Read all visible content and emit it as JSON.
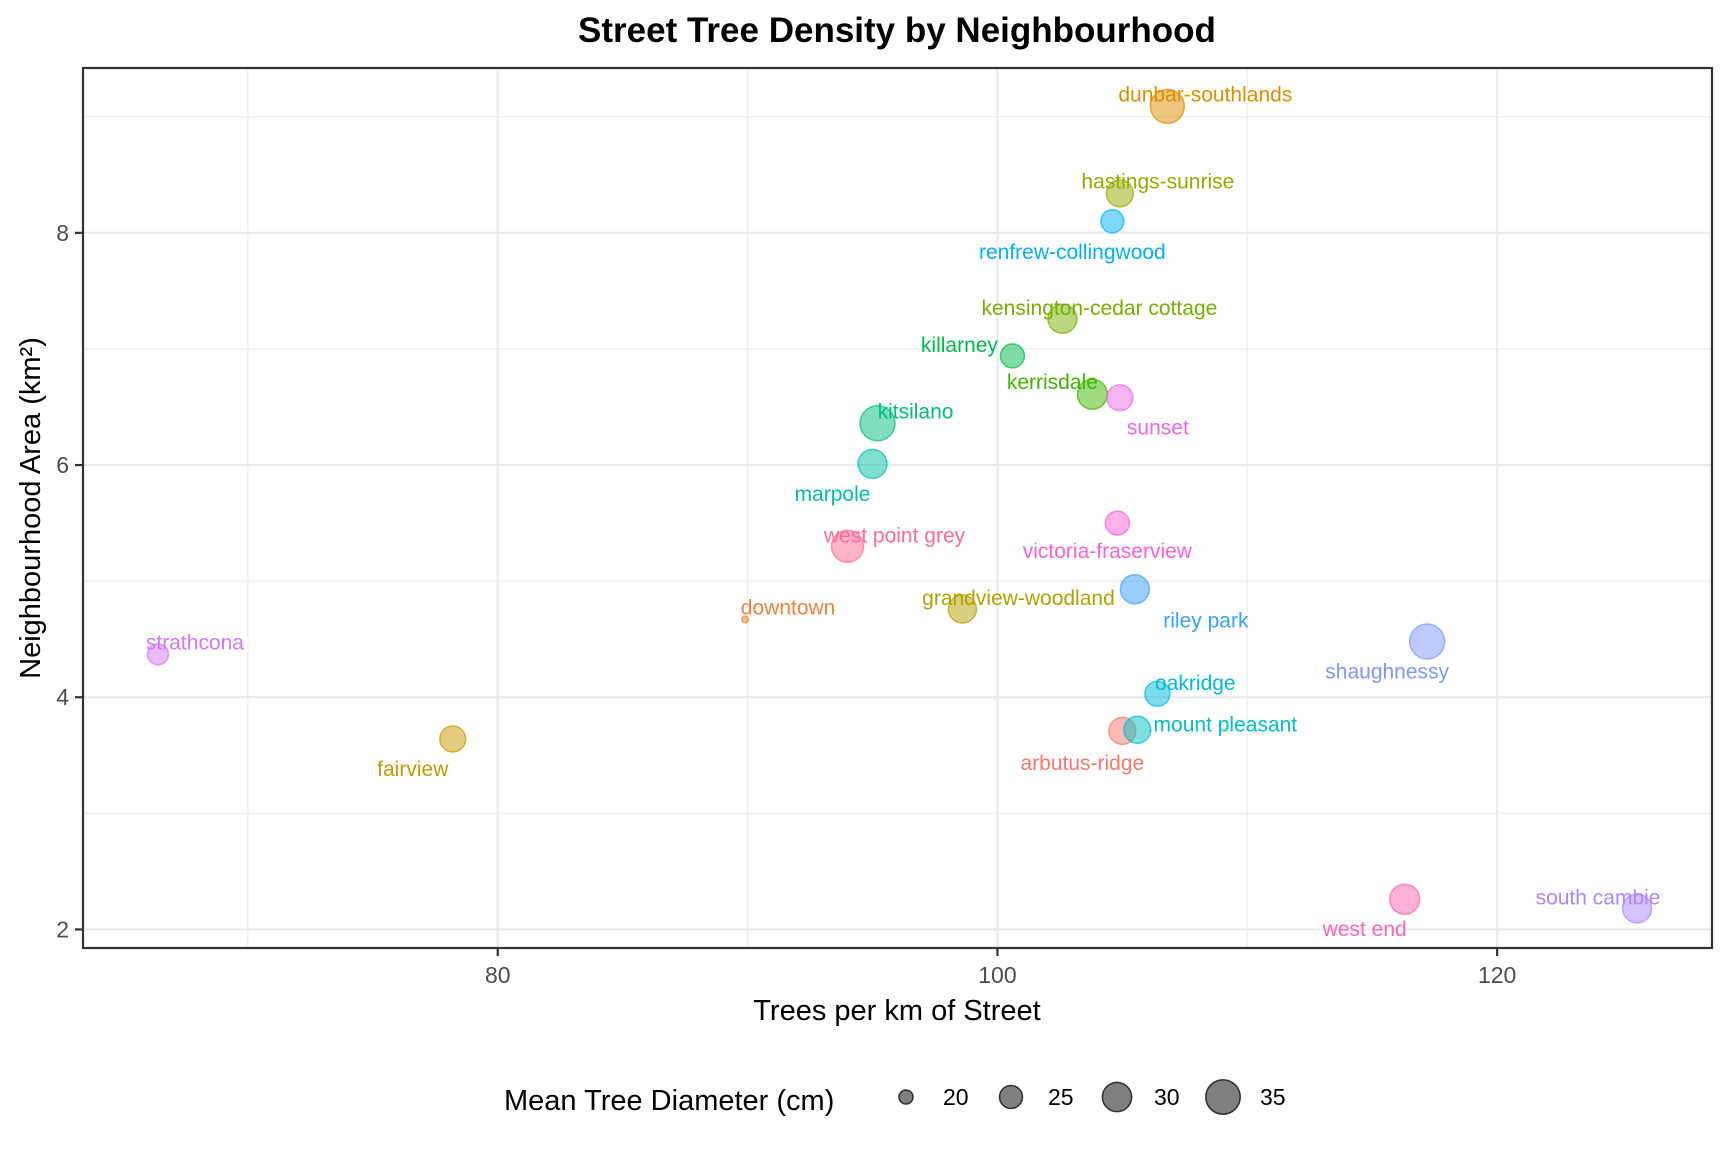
{
  "chart_data": {
    "type": "scatter",
    "title": "Street Tree Density by Neighbourhood",
    "xlabel": "Trees per km of Street",
    "ylabel": "Neighbourhood Area (km²)",
    "xlim": [
      63.4,
      128.6
    ],
    "ylim": [
      1.84,
      9.42
    ],
    "x_ticks": [
      80,
      100,
      120
    ],
    "y_ticks": [
      2,
      4,
      6,
      8
    ],
    "x_minor": [
      70,
      90,
      110
    ],
    "y_minor": [
      3,
      5,
      7,
      9
    ],
    "grid": true,
    "size_legend": {
      "title": "Mean Tree Diameter (cm)",
      "placement": "bottom",
      "breaks": [
        20,
        25,
        30,
        35
      ],
      "labels": [
        "20",
        "25",
        "30",
        "35"
      ],
      "color": "#000000"
    },
    "point_alpha": 0.5,
    "points": [
      {
        "name": "arbutus-ridge",
        "x": 105.0,
        "y": 3.71,
        "size": 28.0,
        "color": "#F8766D"
      },
      {
        "name": "downtown",
        "x": 89.9,
        "y": 4.67,
        "size": 17.7,
        "color": "#EC823C"
      },
      {
        "name": "dunbar-southlands",
        "x": 106.8,
        "y": 9.09,
        "size": 34.5,
        "color": "#DD8D00"
      },
      {
        "name": "fairview",
        "x": 78.2,
        "y": 3.64,
        "size": 27.2,
        "color": "#CA9700"
      },
      {
        "name": "grandview-woodland",
        "x": 98.6,
        "y": 4.76,
        "size": 28.9,
        "color": "#B4A000"
      },
      {
        "name": "hastings-sunrise",
        "x": 104.9,
        "y": 8.34,
        "size": 28.0,
        "color": "#98A800"
      },
      {
        "name": "kensington-cedar cottage",
        "x": 102.6,
        "y": 7.26,
        "size": 29.7,
        "color": "#77AF00"
      },
      {
        "name": "kerrisdale",
        "x": 103.8,
        "y": 6.61,
        "size": 30.6,
        "color": "#3DB600"
      },
      {
        "name": "killarney",
        "x": 100.6,
        "y": 6.94,
        "size": 25.7,
        "color": "#00BA4B"
      },
      {
        "name": "kitsilano",
        "x": 95.2,
        "y": 6.36,
        "size": 35.6,
        "color": "#00BE7D"
      },
      {
        "name": "marpole",
        "x": 95.0,
        "y": 6.01,
        "size": 29.7,
        "color": "#00C0A5"
      },
      {
        "name": "mount pleasant",
        "x": 105.6,
        "y": 3.72,
        "size": 28.0,
        "color": "#00BFC4"
      },
      {
        "name": "oakridge",
        "x": 106.4,
        "y": 4.03,
        "size": 26.5,
        "color": "#00BADE"
      },
      {
        "name": "renfrew-collingwood",
        "x": 104.6,
        "y": 8.1,
        "size": 25.0,
        "color": "#00B0F6"
      },
      {
        "name": "riley park",
        "x": 105.5,
        "y": 4.93,
        "size": 29.7,
        "color": "#35A2FF"
      },
      {
        "name": "shaughnessy",
        "x": 117.2,
        "y": 4.48,
        "size": 35.6,
        "color": "#7B97FF"
      },
      {
        "name": "south cambie",
        "x": 125.6,
        "y": 2.18,
        "size": 29.7,
        "color": "#AC88FF"
      },
      {
        "name": "strathcona",
        "x": 66.4,
        "y": 4.37,
        "size": 23.7,
        "color": "#D377F7"
      },
      {
        "name": "sunset",
        "x": 104.9,
        "y": 6.58,
        "size": 27.2,
        "color": "#EE67E9"
      },
      {
        "name": "victoria-fraserview",
        "x": 104.8,
        "y": 5.5,
        "size": 25.7,
        "color": "#FC61D4"
      },
      {
        "name": "west end",
        "x": 116.3,
        "y": 2.26,
        "size": 30.6,
        "color": "#FF64B1"
      },
      {
        "name": "west point grey",
        "x": 94.0,
        "y": 5.3,
        "size": 32.5,
        "color": "#FF6A93"
      }
    ]
  }
}
